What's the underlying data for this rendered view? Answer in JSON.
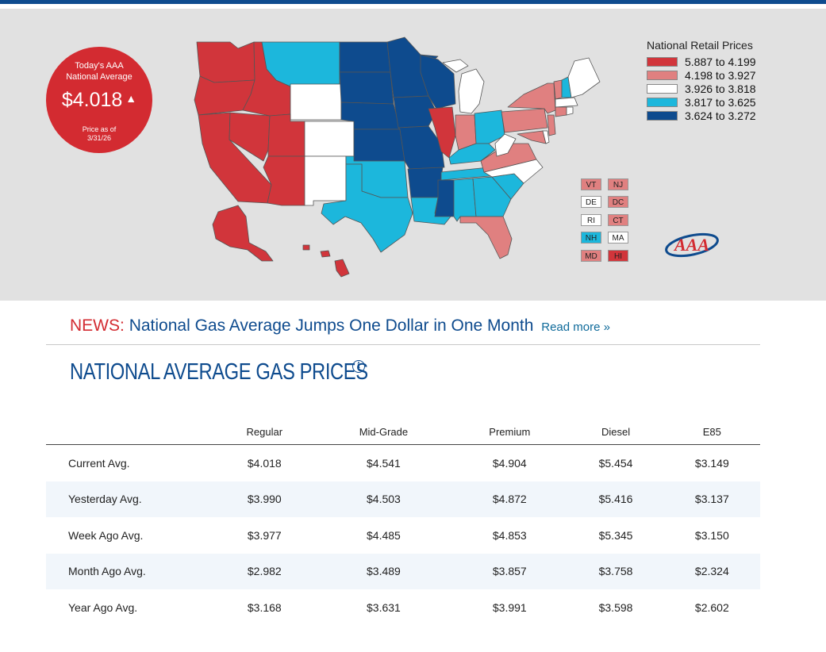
{
  "badge": {
    "line1": "Today's AAA",
    "line2": "National Average",
    "price": "$4.018",
    "trend_icon": "up-triangle-icon",
    "asof_line1": "Price as of",
    "asof_line2": "3/31/26"
  },
  "legend": {
    "title": "National Retail Prices",
    "items": [
      {
        "label": "5.887 to 4.199",
        "color": "#d1353b"
      },
      {
        "label": "4.198 to 3.927",
        "color": "#e08080"
      },
      {
        "label": "3.926 to 3.818",
        "color": "#ffffff"
      },
      {
        "label": "3.817 to 3.625",
        "color": "#1cb7dc"
      },
      {
        "label": "3.624 to 3.272",
        "color": "#0e4b8e"
      }
    ]
  },
  "small_states": [
    {
      "abbr": "VT",
      "color": "#e08080"
    },
    {
      "abbr": "NJ",
      "color": "#e08080"
    },
    {
      "abbr": "DE",
      "color": "#ffffff"
    },
    {
      "abbr": "DC",
      "color": "#e08080"
    },
    {
      "abbr": "RI",
      "color": "#ffffff"
    },
    {
      "abbr": "CT",
      "color": "#e08080"
    },
    {
      "abbr": "NH",
      "color": "#1cb7dc"
    },
    {
      "abbr": "MA",
      "color": "#ffffff"
    },
    {
      "abbr": "MD",
      "color": "#e08080"
    },
    {
      "abbr": "HI",
      "color": "#d1353b"
    }
  ],
  "logo_text": "AAA",
  "news": {
    "label": "NEWS:",
    "headline": "National Gas Average Jumps One Dollar in One Month",
    "read_more": "Read more »"
  },
  "section_title": "NATIONAL AVERAGE GAS PRICES",
  "info_icon": "info-icon",
  "table": {
    "columns": [
      "Regular",
      "Mid-Grade",
      "Premium",
      "Diesel",
      "E85"
    ],
    "rows": [
      {
        "label": "Current Avg.",
        "values": [
          "$4.018",
          "$4.541",
          "$4.904",
          "$5.454",
          "$3.149"
        ]
      },
      {
        "label": "Yesterday Avg.",
        "values": [
          "$3.990",
          "$4.503",
          "$4.872",
          "$5.416",
          "$3.137"
        ]
      },
      {
        "label": "Week Ago Avg.",
        "values": [
          "$3.977",
          "$4.485",
          "$4.853",
          "$5.345",
          "$3.150"
        ]
      },
      {
        "label": "Month Ago Avg.",
        "values": [
          "$2.982",
          "$3.489",
          "$3.857",
          "$3.758",
          "$2.324"
        ]
      },
      {
        "label": "Year Ago Avg.",
        "values": [
          "$3.168",
          "$3.631",
          "$3.991",
          "$3.598",
          "$2.602"
        ]
      }
    ]
  }
}
